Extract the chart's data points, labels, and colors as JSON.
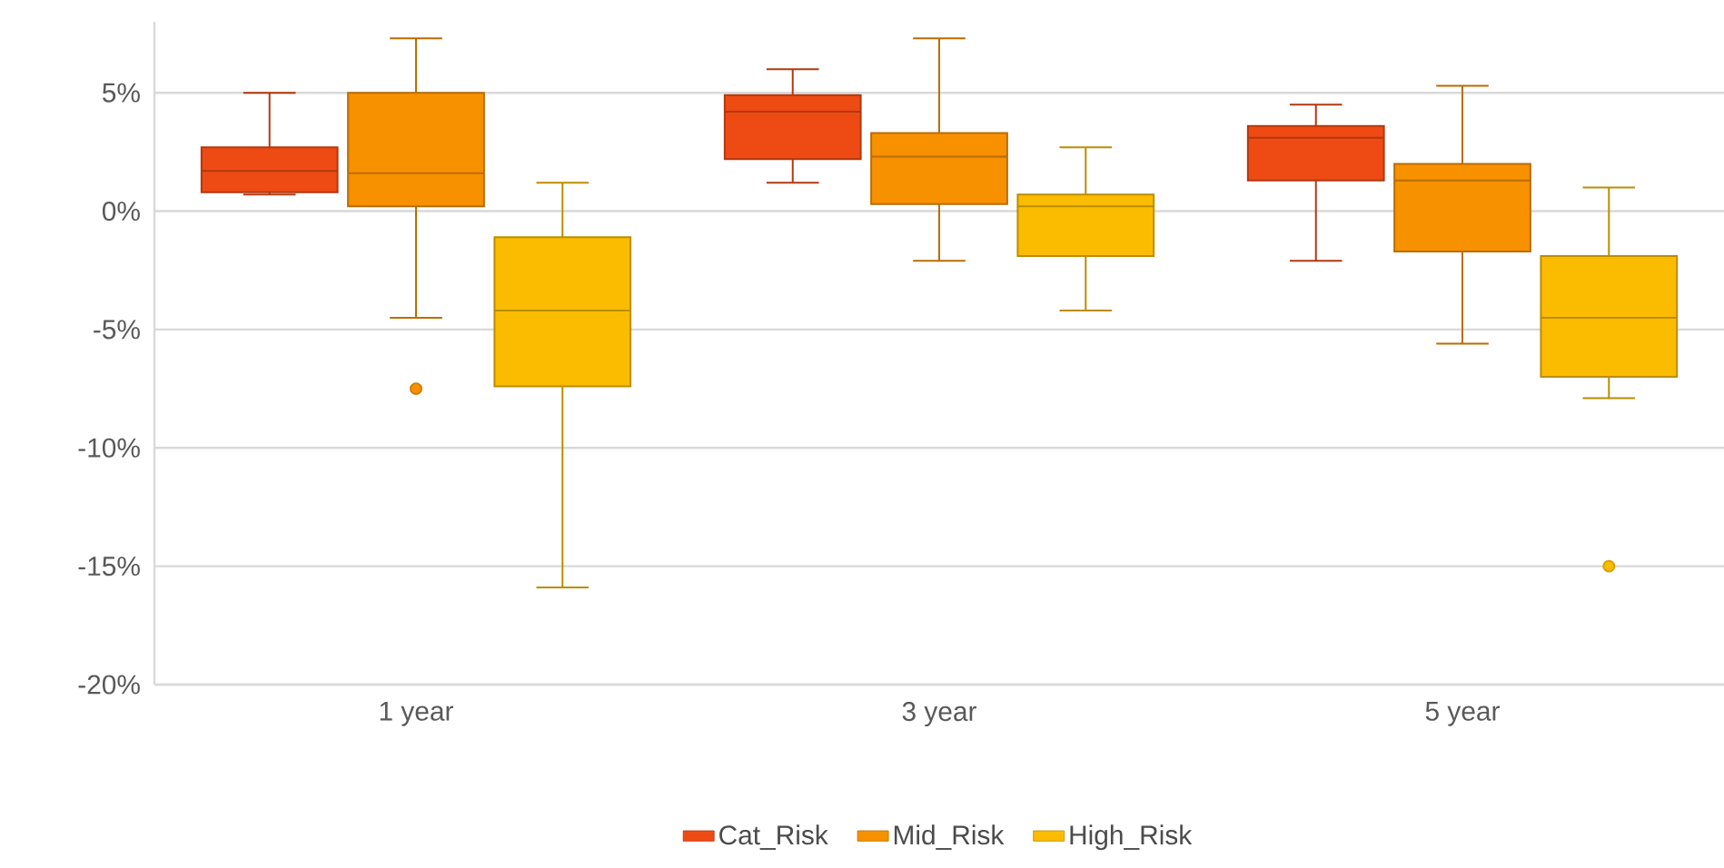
{
  "chart_data": {
    "type": "box",
    "categories": [
      "1 year",
      "3 year",
      "5 year"
    ],
    "series": [
      {
        "name": "Cat_Risk",
        "color": "#ee4b14",
        "boxes": [
          {
            "low": 0.7,
            "q1": 0.8,
            "median": 1.7,
            "q3": 2.7,
            "high": 5.0
          },
          {
            "low": 1.2,
            "q1": 2.2,
            "median": 4.2,
            "q3": 4.9,
            "high": 6.0
          },
          {
            "low": -2.1,
            "q1": 1.3,
            "median": 3.1,
            "q3": 3.6,
            "high": 4.5
          }
        ]
      },
      {
        "name": "Mid_Risk",
        "color": "#f79100",
        "boxes": [
          {
            "low": -4.5,
            "q1": 0.2,
            "median": 1.6,
            "q3": 5.0,
            "high": 7.3,
            "outliers": [
              -7.5
            ]
          },
          {
            "low": -2.1,
            "q1": 0.3,
            "median": 2.3,
            "q3": 3.3,
            "high": 7.3
          },
          {
            "low": -5.6,
            "q1": -1.7,
            "median": 1.3,
            "q3": 2.0,
            "high": 5.3
          }
        ]
      },
      {
        "name": "High_Risk",
        "color": "#fbbc00",
        "boxes": [
          {
            "low": -15.9,
            "q1": -7.4,
            "median": -4.2,
            "q3": -1.1,
            "high": 1.2
          },
          {
            "low": -4.2,
            "q1": -1.9,
            "median": 0.2,
            "q3": 0.7,
            "high": 2.7
          },
          {
            "low": -7.9,
            "q1": -7.0,
            "median": -4.5,
            "q3": -1.9,
            "high": 1.0,
            "outliers": [
              -15.0
            ]
          }
        ]
      }
    ],
    "ylim": [
      -20,
      8
    ],
    "yticks": [
      {
        "value": 5,
        "label": "5%"
      },
      {
        "value": 0,
        "label": "0%"
      },
      {
        "value": -5,
        "label": "-5%"
      },
      {
        "value": -10,
        "label": "-10%"
      },
      {
        "value": -15,
        "label": "-15%"
      },
      {
        "value": -20,
        "label": "-20%"
      }
    ],
    "grid": "y",
    "legend": "bottom"
  }
}
